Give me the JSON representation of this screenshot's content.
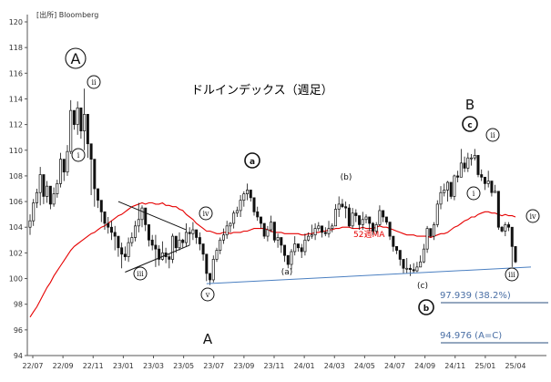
{
  "source": "[出所] Bloomberg",
  "chart_data": {
    "type": "candlestick",
    "title": "ドルインデックス（週足）",
    "y_ticks": [
      "94",
      "96",
      "98",
      "100",
      "102",
      "104",
      "106",
      "108",
      "110",
      "112",
      "114",
      "116",
      "118",
      "120"
    ],
    "x_ticks": [
      "22/07",
      "22/09",
      "22/11",
      "23/01",
      "23/03",
      "23/05",
      "23/07",
      "23/09",
      "23/11",
      "24/01",
      "24/03",
      "24/05",
      "24/07",
      "24/09",
      "24/11",
      "25/01",
      "25/04"
    ],
    "ylim": [
      94,
      120
    ],
    "ma_label": "52週MA",
    "candles_close": [
      104.5,
      105.9,
      106.7,
      108.1,
      106.4,
      107.2,
      105.8,
      106.6,
      107.4,
      109.3,
      108.3,
      109.9,
      113.1,
      112.0,
      113.3,
      111.5,
      112.8,
      110.5,
      109.3,
      107.0,
      106.1,
      105.2,
      104.3,
      104.0,
      103.6,
      103.3,
      102.4,
      101.9,
      101.7,
      102.8,
      103.2,
      104.1,
      104.6,
      105.5,
      104.2,
      103.0,
      102.6,
      102.3,
      101.5,
      102.0,
      101.7,
      101.5,
      103.3,
      102.4,
      103.0,
      102.8,
      103.6,
      103.5,
      103.8,
      103.2,
      102.7,
      101.9,
      100.4,
      99.9,
      101.5,
      102.2,
      103.0,
      103.4,
      104.1,
      104.3,
      105.1,
      105.3,
      106.1,
      106.6,
      106.9,
      106.3,
      105.2,
      104.8,
      104.3,
      103.3,
      103.8,
      104.4,
      103.0,
      103.2,
      102.6,
      101.8,
      101.1,
      102.1,
      102.7,
      102.4,
      102.1,
      103.0,
      103.3,
      103.4,
      103.9,
      104.1,
      103.6,
      103.5,
      103.9,
      104.1,
      105.4,
      105.8,
      105.6,
      105.5,
      104.1,
      105.1,
      104.9,
      104.2,
      104.6,
      104.8,
      104.3,
      103.7,
      104.2,
      105.3,
      104.8,
      104.4,
      103.3,
      102.5,
      102.2,
      101.5,
      100.8,
      100.8,
      100.7,
      100.6,
      100.9,
      101.3,
      102.3,
      103.9,
      103.3,
      104.2,
      105.8,
      106.7,
      106.9,
      107.5,
      106.4,
      108.0,
      107.9,
      109.0,
      108.6,
      109.4,
      109.4,
      109.6,
      108.1,
      107.9,
      107.4,
      107.6,
      106.7,
      106.8,
      104.0,
      103.7,
      104.2,
      104.0,
      102.5,
      101.3
    ],
    "candles_high": [
      105.0,
      106.2,
      107.0,
      108.7,
      106.9,
      107.6,
      106.3,
      107.1,
      107.7,
      109.8,
      108.8,
      110.4,
      113.9,
      112.6,
      113.8,
      112.0,
      114.8,
      111.3,
      110.2,
      108.0,
      106.8,
      105.9,
      104.9,
      104.8,
      104.5,
      104.1,
      103.2,
      102.8,
      102.5,
      103.2,
      103.6,
      104.5,
      105.9,
      105.7,
      105.0,
      103.6,
      103.4,
      103.4,
      102.6,
      102.9,
      102.4,
      101.9,
      103.5,
      102.8,
      103.6,
      103.1,
      104.3,
      104.0,
      104.4,
      103.5,
      103.6,
      102.6,
      101.1,
      100.3,
      101.8,
      102.4,
      103.2,
      103.9,
      104.5,
      104.4,
      105.3,
      105.6,
      106.5,
      106.8,
      107.4,
      106.6,
      105.6,
      105.6,
      104.7,
      103.9,
      104.1,
      104.9,
      103.3,
      103.5,
      103.1,
      102.3,
      101.6,
      102.3,
      103.3,
      102.7,
      102.7,
      103.5,
      103.6,
      104.2,
      104.3,
      104.4,
      104.0,
      104.0,
      104.5,
      104.3,
      105.8,
      106.4,
      106.2,
      106.0,
      105.8,
      105.5,
      105.4,
      104.5,
      105.2,
      105.0,
      104.7,
      104.4,
      104.4,
      105.7,
      105.3,
      104.7,
      104.2,
      103.2,
      102.3,
      102.2,
      101.4,
      101.6,
      101.1,
      101.2,
      101.3,
      101.8,
      102.7,
      104.1,
      103.9,
      104.4,
      106.1,
      107.2,
      107.4,
      107.6,
      107.3,
      108.1,
      108.4,
      110.1,
      109.5,
      109.8,
      109.7,
      110.1,
      108.9,
      108.5,
      107.9,
      108.4,
      106.9,
      107.3,
      104.4,
      104.1,
      104.4,
      104.4,
      102.9,
      102.5
    ],
    "candles_low": [
      103.4,
      104.1,
      105.5,
      105.7,
      105.8,
      105.9,
      105.4,
      105.6,
      106.3,
      107.1,
      107.6,
      108.0,
      109.7,
      111.6,
      111.2,
      110.9,
      110.0,
      109.4,
      106.5,
      105.6,
      105.5,
      104.4,
      103.8,
      103.5,
      103.0,
      102.2,
      101.7,
      100.8,
      101.4,
      101.3,
      102.5,
      102.9,
      103.6,
      104.0,
      103.7,
      102.5,
      102.2,
      100.9,
      101.0,
      101.4,
      101.2,
      100.8,
      101.2,
      102.0,
      102.2,
      102.4,
      102.5,
      102.6,
      103.0,
      102.7,
      102.2,
      101.4,
      99.8,
      99.5,
      99.7,
      101.3,
      101.9,
      102.7,
      103.1,
      103.6,
      103.9,
      104.8,
      104.8,
      105.6,
      106.1,
      106.0,
      104.9,
      104.5,
      103.9,
      103.1,
      102.9,
      103.6,
      102.8,
      102.4,
      102.0,
      101.3,
      100.8,
      100.7,
      101.8,
      102.1,
      101.6,
      101.8,
      102.9,
      103.1,
      103.0,
      103.7,
      103.2,
      103.3,
      103.2,
      103.6,
      104.1,
      104.8,
      105.5,
      104.7,
      104.0,
      103.9,
      104.4,
      103.8,
      103.8,
      104.3,
      103.7,
      103.4,
      103.5,
      104.1,
      104.4,
      104.2,
      103.0,
      102.1,
      101.9,
      101.0,
      100.4,
      100.4,
      100.2,
      100.4,
      100.5,
      100.9,
      101.2,
      102.0,
      103.2,
      103.0,
      104.0,
      105.4,
      106.4,
      106.0,
      106.2,
      106.1,
      107.5,
      107.9,
      108.3,
      108.3,
      108.8,
      109.2,
      107.9,
      107.6,
      106.9,
      107.1,
      106.4,
      106.7,
      103.8,
      103.6,
      103.3,
      103.7,
      100.9,
      101.2
    ],
    "ma_52": [
      97.0,
      97.4,
      97.8,
      98.3,
      98.8,
      99.3,
      99.7,
      100.2,
      100.6,
      101.0,
      101.4,
      101.8,
      102.2,
      102.5,
      102.7,
      102.9,
      103.1,
      103.3,
      103.5,
      103.6,
      103.8,
      104.0,
      104.1,
      104.3,
      104.5,
      104.7,
      104.9,
      105.0,
      105.2,
      105.4,
      105.6,
      105.7,
      105.8,
      105.9,
      105.8,
      105.9,
      105.9,
      105.8,
      105.8,
      105.9,
      105.7,
      105.7,
      105.6,
      105.6,
      105.4,
      105.3,
      105.0,
      104.8,
      104.6,
      104.3,
      104.1,
      103.9,
      103.7,
      103.7,
      103.6,
      103.5,
      103.5,
      103.6,
      103.6,
      103.5,
      103.6,
      103.6,
      103.6,
      103.7,
      103.7,
      103.8,
      103.9,
      103.9,
      103.9,
      103.9,
      103.8,
      103.7,
      103.6,
      103.6,
      103.6,
      103.5,
      103.5,
      103.5,
      103.5,
      103.5,
      103.4,
      103.4,
      103.5,
      103.5,
      103.6,
      103.6,
      103.7,
      103.7,
      103.8,
      103.8,
      103.9,
      103.9,
      104.0,
      104.0,
      104.0,
      103.9,
      103.9,
      103.9,
      104.0,
      103.9,
      103.9,
      103.9,
      104.0,
      104.1,
      104.0,
      104.0,
      103.9,
      103.8,
      103.7,
      103.6,
      103.5,
      103.4,
      103.4,
      103.4,
      103.3,
      103.3,
      103.3,
      103.3,
      103.2,
      103.3,
      103.4,
      103.5,
      103.5,
      103.6,
      103.8,
      104.0,
      104.1,
      104.3,
      104.5,
      104.6,
      104.8,
      104.8,
      105.0,
      105.1,
      105.2,
      105.2,
      105.1,
      105.1,
      105.0,
      104.9,
      105.0,
      104.9,
      104.9,
      104.8
    ],
    "wave_labels": [
      {
        "text": "A",
        "style": "circle-big"
      },
      {
        "text": "ii",
        "style": "circle"
      },
      {
        "text": "i",
        "style": "circle"
      },
      {
        "text": "iii",
        "style": "circle"
      },
      {
        "text": "iv",
        "style": "circle"
      },
      {
        "text": "v",
        "style": "circle"
      },
      {
        "text": "A",
        "style": "plain-big"
      },
      {
        "text": "a",
        "style": "circle-bold"
      },
      {
        "text": "(a)",
        "style": "plain"
      },
      {
        "text": "(b)",
        "style": "plain"
      },
      {
        "text": "(c)",
        "style": "plain"
      },
      {
        "text": "b",
        "style": "circle-bold"
      },
      {
        "text": "B",
        "style": "plain-big"
      },
      {
        "text": "c",
        "style": "circle-bold"
      },
      {
        "text": "ii",
        "style": "circle"
      },
      {
        "text": "i",
        "style": "circle"
      },
      {
        "text": "iv",
        "style": "circle"
      },
      {
        "text": "iii",
        "style": "circle"
      }
    ],
    "fib_levels": [
      {
        "label": "97.939 (38.2%)",
        "value": 97.939
      },
      {
        "label": "94.976 (A=C)",
        "value": 94.976
      }
    ],
    "colors": {
      "candle": "#111111",
      "ma": "#e60000",
      "support": "#4a7fc1",
      "fib_text": "#4a6fa5",
      "fib_line": "#2b4f7f",
      "grid": "#dddddd"
    }
  }
}
